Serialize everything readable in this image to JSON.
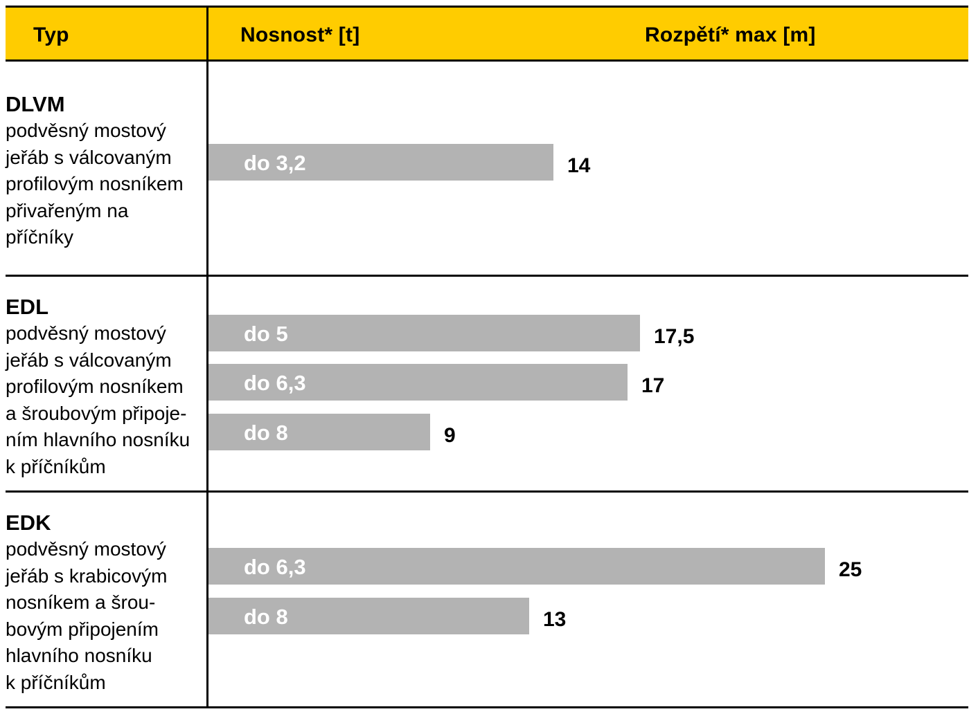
{
  "table": {
    "headers": {
      "type": "Typ",
      "capacity": "Nosnost* [t]",
      "span": "Rozpětí* max [m]"
    },
    "rows": [
      {
        "name": "DLVM",
        "description": "podvěsný mostový\njeřáb s válcovaným\nprofilovým nosníkem\npřivařeným na\npříčníky"
      },
      {
        "name": "EDL",
        "description": "podvěsný mostový\njeřáb s válcovaným\nprofilovým nosníkem\na šroubovým připoje-\nním hlavního nosníku\nk příčníkům"
      },
      {
        "name": "EDK",
        "description": "podvěsný mostový\njeřáb s krabicovým\nnosníkem a šrou-\nbovým připojením\nhlavního nosníku\nk příčníkům"
      }
    ]
  },
  "chart_data": {
    "type": "bar",
    "orientation": "horizontal",
    "xlabel": "Rozpětí* max [m]",
    "ylabel": "Nosnost* [t]",
    "bar_color": "#b3b3b3",
    "header_color": "#ffcc00",
    "groups": [
      {
        "type": "DLVM",
        "bars": [
          {
            "label": "do 3,2",
            "value": 14,
            "value_label": "14"
          }
        ]
      },
      {
        "type": "EDL",
        "bars": [
          {
            "label": "do 5",
            "value": 17.5,
            "value_label": "17,5"
          },
          {
            "label": "do 6,3",
            "value": 17,
            "value_label": "17"
          },
          {
            "label": "do 8",
            "value": 9,
            "value_label": "9"
          }
        ]
      },
      {
        "type": "EDK",
        "bars": [
          {
            "label": "do 6,3",
            "value": 25,
            "value_label": "25"
          },
          {
            "label": "do 8",
            "value": 13,
            "value_label": "13"
          }
        ]
      }
    ]
  }
}
